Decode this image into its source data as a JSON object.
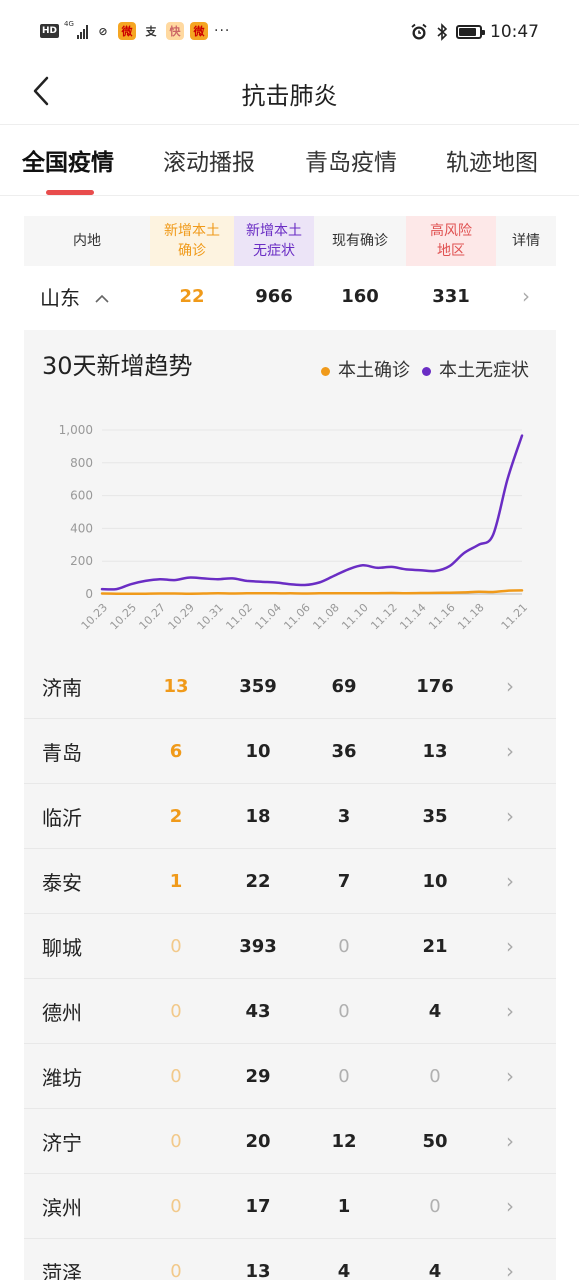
{
  "status_bar": {
    "hd": "HD",
    "network": "4G",
    "app1": "⊘",
    "app2": "支",
    "app3": "快",
    "app4": "微",
    "more": "···",
    "time": "10:47"
  },
  "navbar": {
    "title": "抗击肺炎"
  },
  "tabs": [
    {
      "label": "全国疫情",
      "active": true
    },
    {
      "label": "滚动播报"
    },
    {
      "label": "青岛疫情"
    },
    {
      "label": "轨迹地图"
    }
  ],
  "summary": {
    "headers": [
      "内地",
      "新增本土确诊",
      "新增本土无症状",
      "现有确诊",
      "高风险地区",
      "详情"
    ],
    "header_lines": [
      [
        "内地"
      ],
      [
        "新增本土",
        "确诊"
      ],
      [
        "新增本土",
        "无症状"
      ],
      [
        "现有确诊"
      ],
      [
        "高风险",
        "地区"
      ],
      [
        "详情"
      ]
    ],
    "row": {
      "region": "山东",
      "confirmed": "22",
      "asymptomatic": "966",
      "existing": "160",
      "high_risk": "331"
    }
  },
  "colors": {
    "confirmed": "#f09a1a",
    "asymptomatic": "#6a2dc4",
    "high_risk_text": "#e05252",
    "tab_indicator": "#e84c4c",
    "zero_value": "#f2c98a",
    "zero_value_gray": "#b0b0b0"
  },
  "chart": {
    "title": "30天新增趋势",
    "legend": [
      "本土确诊",
      "本土无症状"
    ]
  },
  "chart_data": {
    "type": "line",
    "title": "30天新增趋势",
    "x": [
      "10.23",
      "10.24",
      "10.25",
      "10.26",
      "10.27",
      "10.28",
      "10.29",
      "10.30",
      "10.31",
      "11.01",
      "11.02",
      "11.03",
      "11.04",
      "11.05",
      "11.06",
      "11.07",
      "11.08",
      "11.09",
      "11.10",
      "11.11",
      "11.12",
      "11.13",
      "11.14",
      "11.15",
      "11.16",
      "11.17",
      "11.18",
      "11.19",
      "11.20",
      "11.21"
    ],
    "x_tick_labels": [
      "10.23",
      "10.25",
      "10.27",
      "10.29",
      "10.31",
      "11.02",
      "11.04",
      "11.06",
      "11.08",
      "11.10",
      "11.12",
      "11.14",
      "11.16",
      "11.18",
      "11.21"
    ],
    "series": [
      {
        "name": "本土确诊",
        "values": [
          3,
          2,
          2,
          2,
          3,
          3,
          2,
          3,
          4,
          3,
          4,
          5,
          4,
          4,
          3,
          4,
          5,
          4,
          5,
          5,
          6,
          5,
          6,
          7,
          8,
          10,
          14,
          12,
          20,
          22
        ]
      },
      {
        "name": "本土无症状",
        "values": [
          30,
          30,
          60,
          80,
          90,
          85,
          100,
          95,
          90,
          95,
          80,
          75,
          70,
          60,
          55,
          70,
          110,
          150,
          175,
          160,
          165,
          150,
          145,
          140,
          170,
          250,
          300,
          360,
          700,
          966
        ]
      }
    ],
    "yticks": [
      "1,000",
      "800",
      "600",
      "400",
      "200",
      "0"
    ],
    "ylim": [
      0,
      1000
    ],
    "grid": true
  },
  "rows": [
    {
      "name": "济南",
      "confirmed": "13",
      "asymptomatic": "359",
      "existing": "69",
      "high_risk": "176"
    },
    {
      "name": "青岛",
      "confirmed": "6",
      "asymptomatic": "10",
      "existing": "36",
      "high_risk": "13"
    },
    {
      "name": "临沂",
      "confirmed": "2",
      "asymptomatic": "18",
      "existing": "3",
      "high_risk": "35"
    },
    {
      "name": "泰安",
      "confirmed": "1",
      "asymptomatic": "22",
      "existing": "7",
      "high_risk": "10"
    },
    {
      "name": "聊城",
      "confirmed": "0",
      "asymptomatic": "393",
      "existing": "0",
      "high_risk": "21"
    },
    {
      "name": "德州",
      "confirmed": "0",
      "asymptomatic": "43",
      "existing": "0",
      "high_risk": "4"
    },
    {
      "name": "潍坊",
      "confirmed": "0",
      "asymptomatic": "29",
      "existing": "0",
      "high_risk": "0"
    },
    {
      "name": "济宁",
      "confirmed": "0",
      "asymptomatic": "20",
      "existing": "12",
      "high_risk": "50"
    },
    {
      "name": "滨州",
      "confirmed": "0",
      "asymptomatic": "17",
      "existing": "1",
      "high_risk": "0"
    },
    {
      "name": "菏泽",
      "confirmed": "0",
      "asymptomatic": "13",
      "existing": "4",
      "high_risk": "4"
    }
  ]
}
